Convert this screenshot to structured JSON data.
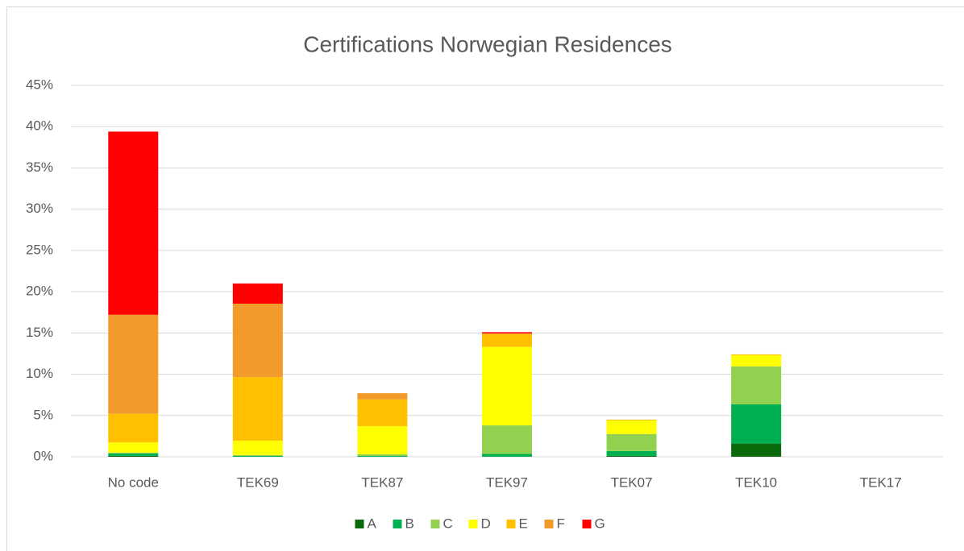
{
  "chart_data": {
    "type": "bar",
    "stacked": true,
    "title": "Certifications Norwegian Residences",
    "categories": [
      "No code",
      "TEK69",
      "TEK87",
      "TEK97",
      "TEK07",
      "TEK10",
      "TEK17"
    ],
    "series": [
      {
        "name": "A",
        "color": "#0b6a0b",
        "values": [
          0.1,
          0,
          0,
          0,
          0.1,
          1.6,
          0
        ]
      },
      {
        "name": "B",
        "color": "#00b050",
        "values": [
          0.3,
          0.1,
          0.1,
          0.35,
          0.6,
          4.75,
          0
        ]
      },
      {
        "name": "C",
        "color": "#92d050",
        "values": [
          0.1,
          0.1,
          0.2,
          3.45,
          2.05,
          4.6,
          0
        ]
      },
      {
        "name": "D",
        "color": "#ffff00",
        "values": [
          1.25,
          1.75,
          3.4,
          9.5,
          1.65,
          1.35,
          0
        ]
      },
      {
        "name": "E",
        "color": "#ffc000",
        "values": [
          3.45,
          7.7,
          3.25,
          1.55,
          0.1,
          0.1,
          0
        ]
      },
      {
        "name": "F",
        "color": "#f29b2a",
        "values": [
          12.0,
          8.9,
          0.75,
          0.1,
          0,
          0,
          0
        ]
      },
      {
        "name": "G",
        "color": "#ff0000",
        "values": [
          22.2,
          2.45,
          0,
          0.15,
          0,
          0,
          0
        ]
      }
    ],
    "ylim": [
      0,
      45
    ],
    "yticks": [
      {
        "value": 0,
        "label": "0%"
      },
      {
        "value": 5,
        "label": "5%"
      },
      {
        "value": 10,
        "label": "10%"
      },
      {
        "value": 15,
        "label": "15%"
      },
      {
        "value": 20,
        "label": "20%"
      },
      {
        "value": 25,
        "label": "25%"
      },
      {
        "value": 30,
        "label": "30%"
      },
      {
        "value": 35,
        "label": "35%"
      },
      {
        "value": 40,
        "label": "40%"
      },
      {
        "value": 45,
        "label": "45%"
      }
    ],
    "grid": true,
    "legend": "bottom"
  }
}
